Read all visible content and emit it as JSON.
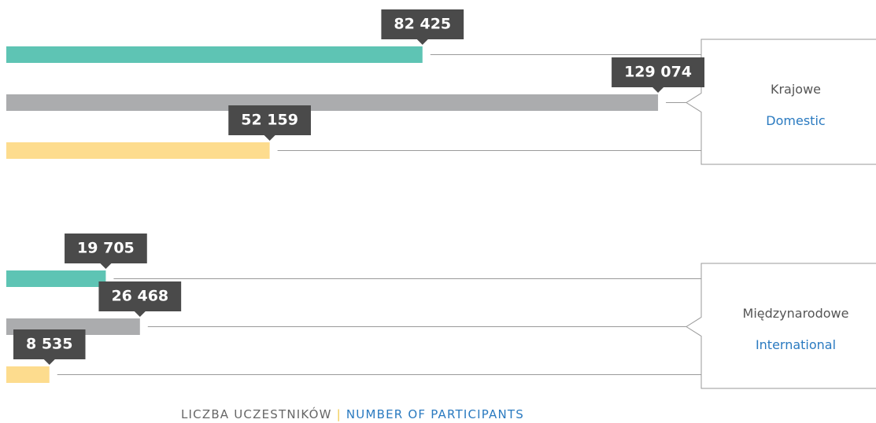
{
  "chart_data": {
    "type": "hbar_grouped",
    "categories": [
      "Krajowe",
      "Międzynarodowe"
    ],
    "categories_en": [
      "Domestic",
      "International"
    ],
    "series": [
      {
        "color": "#5ec4b4",
        "values": [
          82425,
          19705
        ],
        "value_labels": [
          "82 425",
          "19 705"
        ]
      },
      {
        "color": "#abacae",
        "values": [
          129074,
          26468
        ],
        "value_labels": [
          "129 074",
          "26 468"
        ]
      },
      {
        "color": "#fddc8e",
        "values": [
          52159,
          8535
        ],
        "value_labels": [
          "52 159",
          "8 535"
        ]
      }
    ],
    "xlim": [
      0,
      130000
    ],
    "x_label": "LICZBA UCZESTNIKÓW",
    "x_label_en": "NUMBER OF PARTICIPANTS"
  }
}
